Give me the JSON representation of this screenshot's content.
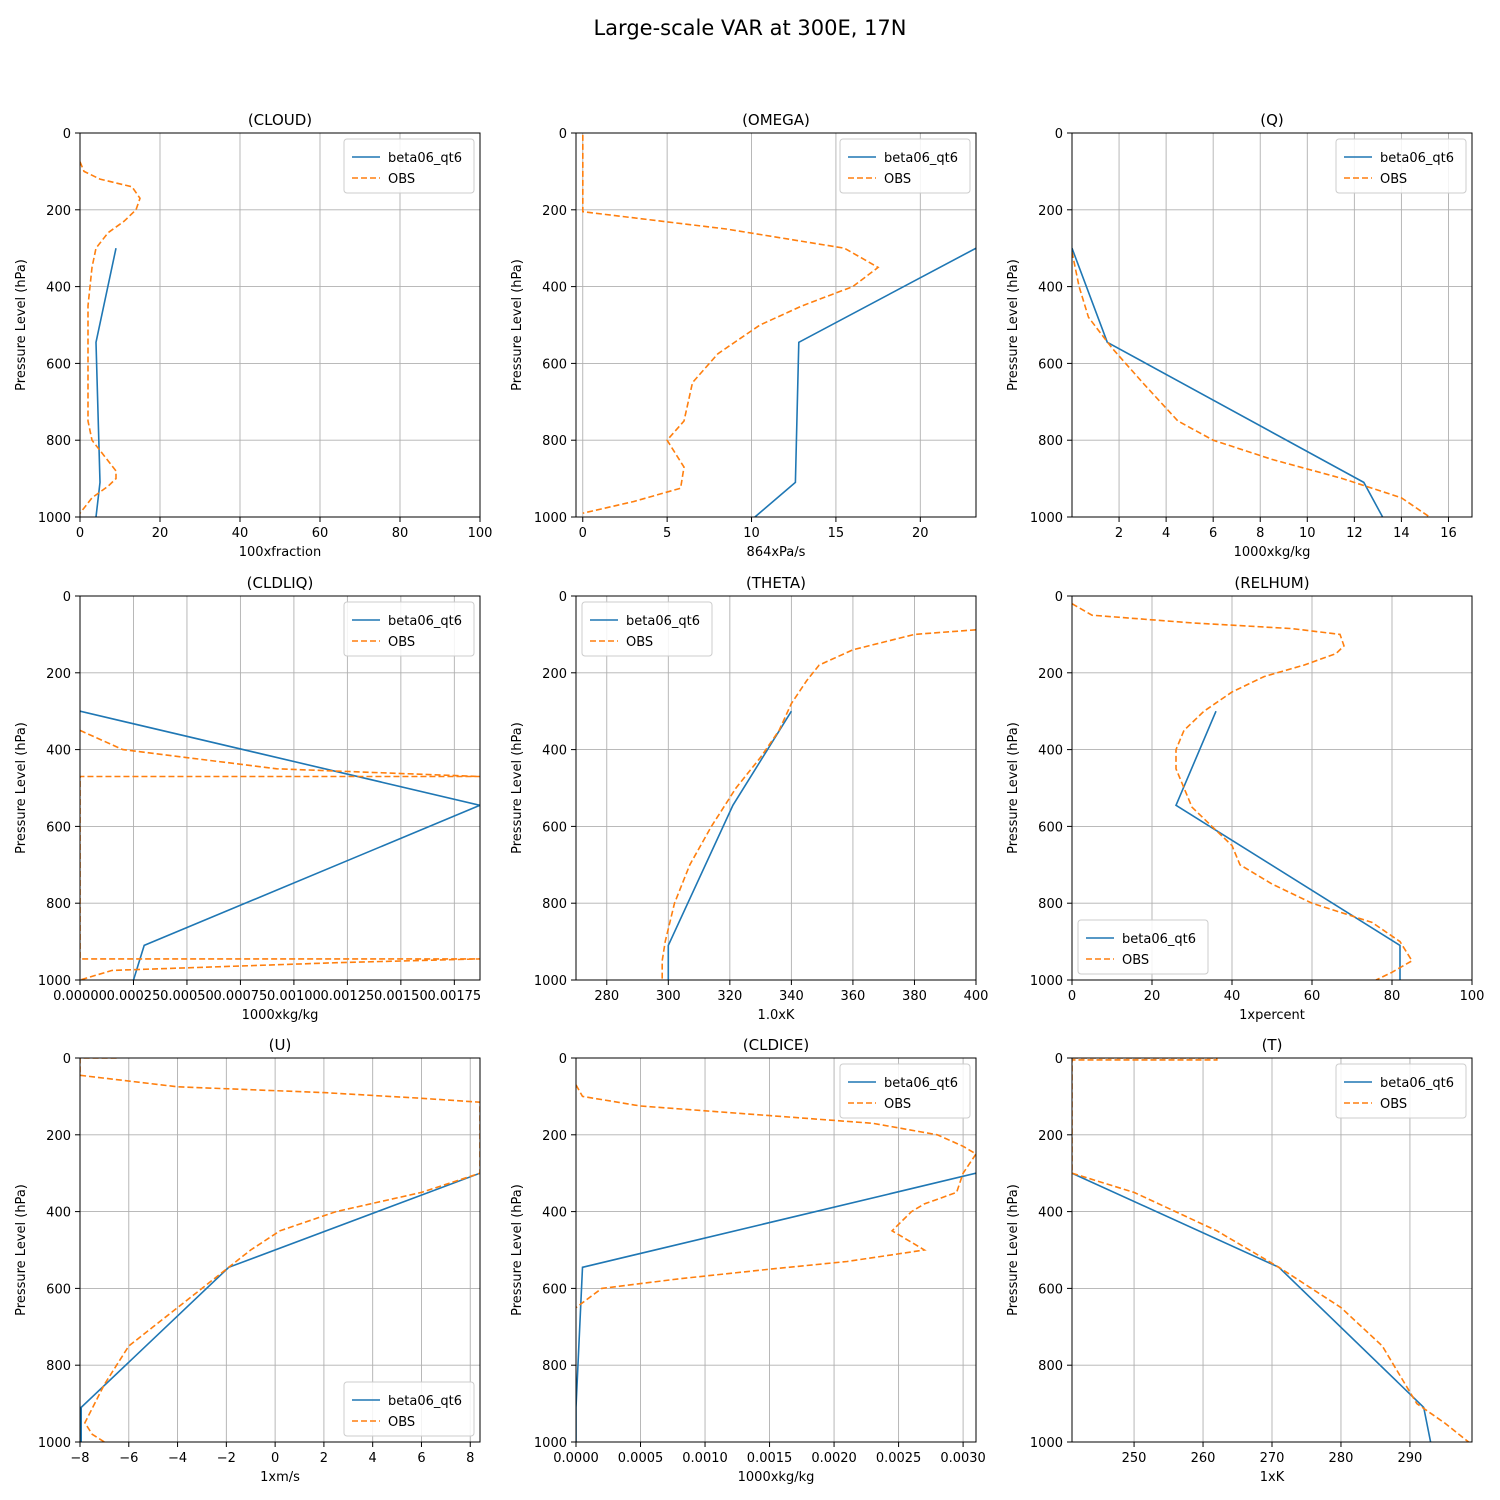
{
  "figure": {
    "title": "Large-scale VAR at 300E, 17N"
  },
  "colors": {
    "model": "#1f77b4",
    "obs": "#ff7f0e",
    "grid": "#b0b0b0"
  },
  "legend_labels": {
    "model": "beta06_qt6",
    "obs": "OBS"
  },
  "chart_data": [
    {
      "type": "line",
      "title": "(CLOUD)",
      "xlabel": "100xfraction",
      "ylabel": "Pressure Level (hPa)",
      "xlim": [
        0,
        100
      ],
      "ylim": [
        1000,
        0
      ],
      "xticks": [
        0,
        20,
        40,
        60,
        80,
        100
      ],
      "yticks": [
        0,
        200,
        400,
        600,
        800,
        1000
      ],
      "legend_loc": "upper-right",
      "series": [
        {
          "name": "beta06_qt6",
          "style": "solid",
          "x": [
            9,
            4,
            5,
            4
          ],
          "y": [
            300,
            545,
            910,
            1000
          ]
        },
        {
          "name": "OBS",
          "style": "dashed",
          "x": [
            0,
            1,
            5,
            13,
            15,
            14,
            11,
            7,
            4,
            3,
            2.5,
            2,
            2,
            2,
            2,
            3,
            6,
            9,
            9,
            7,
            3,
            0
          ],
          "y": [
            75,
            100,
            120,
            140,
            170,
            200,
            230,
            260,
            300,
            350,
            400,
            450,
            550,
            650,
            750,
            800,
            840,
            880,
            900,
            920,
            950,
            990
          ]
        }
      ]
    },
    {
      "type": "line",
      "title": "(OMEGA)",
      "xlabel": "864xPa/s",
      "ylabel": "Pressure Level (hPa)",
      "xlim": [
        -0.4,
        23.3
      ],
      "ylim": [
        1000,
        0
      ],
      "xticks": [
        0,
        5,
        10,
        15,
        20
      ],
      "yticks": [
        0,
        200,
        400,
        600,
        800,
        1000
      ],
      "legend_loc": "upper-right",
      "series": [
        {
          "name": "beta06_qt6",
          "style": "solid",
          "x": [
            23.3,
            12.8,
            12.6,
            10.2
          ],
          "y": [
            300,
            545,
            910,
            1000
          ]
        },
        {
          "name": "OBS",
          "style": "dashed",
          "x": [
            0,
            0,
            0,
            8.5,
            15.5,
            17.5,
            16,
            13,
            10.5,
            8,
            6.5,
            6,
            5,
            6,
            5.8,
            3,
            0
          ],
          "y": [
            5,
            30,
            205,
            250,
            300,
            350,
            400,
            450,
            500,
            575,
            650,
            750,
            800,
            870,
            925,
            960,
            990
          ]
        }
      ]
    },
    {
      "type": "line",
      "title": "(Q)",
      "xlabel": "1000xkg/kg",
      "ylabel": "Pressure Level (hPa)",
      "xlim": [
        0,
        17
      ],
      "ylim": [
        1000,
        0
      ],
      "xticks": [
        2,
        4,
        6,
        8,
        10,
        12,
        14,
        16
      ],
      "yticks": [
        0,
        200,
        400,
        600,
        800,
        1000
      ],
      "legend_loc": "upper-right",
      "series": [
        {
          "name": "beta06_qt6",
          "style": "solid",
          "x": [
            0,
            1.5,
            12.4,
            13.2
          ],
          "y": [
            300,
            545,
            910,
            1000
          ]
        },
        {
          "name": "OBS",
          "style": "dashed",
          "x": [
            0,
            0.3,
            0.7,
            1.7,
            3,
            4.5,
            6,
            8.5,
            11.5,
            14,
            15.2
          ],
          "y": [
            310,
            400,
            480,
            560,
            650,
            750,
            800,
            850,
            900,
            950,
            1000
          ]
        }
      ]
    },
    {
      "type": "line",
      "title": "(CLDLIQ)",
      "xlabel": "1000xkg/kg",
      "ylabel": "Pressure Level (hPa)",
      "xlim": [
        0,
        0.00187
      ],
      "ylim": [
        1000,
        0
      ],
      "xticks": [
        0,
        0.00025,
        0.0005,
        0.00075,
        0.001,
        0.00125,
        0.0015,
        0.00175
      ],
      "xtick_labels": [
        "0.00000",
        "0.00025",
        "0.00050",
        "0.00075",
        "0.00100",
        "0.00125",
        "0.00150",
        "0.00175"
      ],
      "yticks": [
        0,
        200,
        400,
        600,
        800,
        1000
      ],
      "legend_loc": "upper-right",
      "series": [
        {
          "name": "beta06_qt6",
          "style": "solid",
          "x": [
            0,
            0.00187,
            0.0003,
            0.00025
          ],
          "y": [
            300,
            545,
            910,
            1000
          ]
        },
        {
          "name": "OBS",
          "style": "dashed",
          "x": [
            0,
            0.0002,
            0.00092,
            0.00187,
            0,
            0,
            0.00187,
            0.0012,
            0.00015,
            0
          ],
          "y": [
            350,
            400,
            450,
            470,
            470,
            945,
            945,
            955,
            975,
            1000
          ]
        }
      ]
    },
    {
      "type": "line",
      "title": "(THETA)",
      "xlabel": "1.0xK",
      "ylabel": "Pressure Level (hPa)",
      "xlim": [
        270,
        400
      ],
      "ylim": [
        1000,
        0
      ],
      "xticks": [
        280,
        300,
        320,
        340,
        360,
        380,
        400
      ],
      "yticks": [
        0,
        200,
        400,
        600,
        800,
        1000
      ],
      "legend_loc": "upper-left",
      "series": [
        {
          "name": "beta06_qt6",
          "style": "solid",
          "x": [
            340,
            321,
            300,
            300
          ],
          "y": [
            300,
            545,
            910,
            1000
          ]
        },
        {
          "name": "OBS",
          "style": "dashed",
          "x": [
            400,
            380,
            360,
            349,
            345,
            340,
            336,
            330,
            322,
            314,
            307,
            302,
            299,
            298,
            298
          ],
          "y": [
            88,
            100,
            140,
            180,
            220,
            280,
            350,
            420,
            500,
            600,
            700,
            800,
            900,
            950,
            1000
          ]
        }
      ]
    },
    {
      "type": "line",
      "title": "(RELHUM)",
      "xlabel": "1xpercent",
      "ylabel": "Pressure Level (hPa)",
      "xlim": [
        0,
        100
      ],
      "ylim": [
        1000,
        0
      ],
      "xticks": [
        0,
        20,
        40,
        60,
        80,
        100
      ],
      "yticks": [
        0,
        200,
        400,
        600,
        800,
        1000
      ],
      "legend_loc": "lower-left",
      "series": [
        {
          "name": "beta06_qt6",
          "style": "solid",
          "x": [
            36,
            26,
            82,
            82
          ],
          "y": [
            300,
            545,
            910,
            1000
          ]
        },
        {
          "name": "OBS",
          "style": "dashed",
          "x": [
            0,
            5,
            30,
            55,
            67,
            68,
            66,
            58,
            48,
            40,
            33,
            28,
            26,
            26,
            30,
            35,
            40,
            42,
            50,
            60,
            75,
            82,
            85,
            80,
            76
          ],
          "y": [
            20,
            50,
            70,
            85,
            100,
            130,
            150,
            180,
            210,
            250,
            300,
            350,
            400,
            450,
            550,
            600,
            650,
            700,
            750,
            800,
            850,
            900,
            950,
            980,
            1000
          ]
        }
      ]
    },
    {
      "type": "line",
      "title": "(U)",
      "xlabel": "1xm/s",
      "ylabel": "Pressure Level (hPa)",
      "xlim": [
        -8,
        8.4
      ],
      "ylim": [
        1000,
        0
      ],
      "xticks": [
        -8,
        -6,
        -4,
        -2,
        0,
        2,
        4,
        6,
        8
      ],
      "yticks": [
        0,
        200,
        400,
        600,
        800,
        1000
      ],
      "legend_loc": "lower-right",
      "series": [
        {
          "name": "beta06_qt6",
          "style": "solid",
          "x": [
            8.4,
            -1.9,
            -7.95,
            -7.95
          ],
          "y": [
            300,
            545,
            910,
            1000
          ]
        },
        {
          "name": "OBS",
          "style": "dashed",
          "x": [
            -6.5,
            -8,
            -8,
            -4,
            2,
            6,
            8.4,
            8.4,
            6,
            2.5,
            0.2,
            -1,
            -2,
            -4,
            -5,
            -6,
            -7,
            -7.8,
            -7.5,
            -7.0
          ],
          "y": [
            0,
            0,
            45,
            75,
            90,
            105,
            115,
            300,
            350,
            400,
            450,
            500,
            550,
            650,
            700,
            750,
            850,
            950,
            980,
            1000
          ]
        }
      ]
    },
    {
      "type": "line",
      "title": "(CLDICE)",
      "xlabel": "1000xkg/kg",
      "ylabel": "Pressure Level (hPa)",
      "xlim": [
        0,
        0.0031
      ],
      "ylim": [
        1000,
        0
      ],
      "xticks": [
        0,
        0.0005,
        0.001,
        0.0015,
        0.002,
        0.0025,
        0.003
      ],
      "xtick_labels": [
        "0.0000",
        "0.0005",
        "0.0010",
        "0.0015",
        "0.0020",
        "0.0025",
        "0.0030"
      ],
      "yticks": [
        0,
        200,
        400,
        600,
        800,
        1000
      ],
      "legend_loc": "upper-right",
      "series": [
        {
          "name": "beta06_qt6",
          "style": "solid",
          "x": [
            0.0031,
            5e-05,
            0,
            0
          ],
          "y": [
            300,
            545,
            910,
            1000
          ]
        },
        {
          "name": "OBS",
          "style": "dashed",
          "x": [
            0,
            5e-05,
            0.0005,
            0.0015,
            0.0023,
            0.0028,
            0.003,
            0.0031,
            0.003,
            0.00295,
            0.0027,
            0.0026,
            0.00245,
            0.0027,
            0.0021,
            0.0015,
            0.0008,
            0.0002,
            0
          ],
          "y": [
            70,
            100,
            125,
            150,
            170,
            200,
            230,
            250,
            300,
            350,
            380,
            400,
            450,
            500,
            530,
            550,
            575,
            600,
            650
          ]
        }
      ]
    },
    {
      "type": "line",
      "title": "(T)",
      "xlabel": "1xK",
      "ylabel": "Pressure Level (hPa)",
      "xlim": [
        241,
        299
      ],
      "ylim": [
        1000,
        0
      ],
      "xticks": [
        250,
        260,
        270,
        280,
        290
      ],
      "yticks": [
        0,
        200,
        400,
        600,
        800,
        1000
      ],
      "legend_loc": "upper-right",
      "series": [
        {
          "name": "beta06_qt6",
          "style": "solid",
          "x": [
            241,
            271,
            292,
            293
          ],
          "y": [
            300,
            545,
            910,
            1000
          ]
        },
        {
          "name": "OBS",
          "style": "dashed",
          "x": [
            241,
            262,
            262,
            241,
            241,
            250,
            262,
            271,
            280,
            286,
            291,
            295,
            298.5
          ],
          "y": [
            0,
            0,
            5,
            5,
            300,
            350,
            450,
            545,
            650,
            750,
            900,
            950,
            1000
          ]
        }
      ]
    }
  ]
}
